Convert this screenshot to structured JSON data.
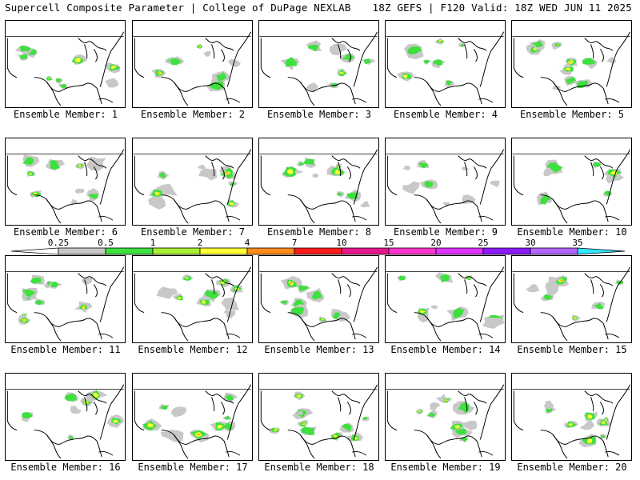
{
  "header": {
    "left_title": "Supercell Composite Parameter | College of DuPage NEXLAB",
    "right_title": "18Z GEFS | F120 Valid: 18Z WED JUN 11 2025"
  },
  "colorbar": {
    "levels": [
      "0.25",
      "0.5",
      "1",
      "2",
      "4",
      "7",
      "10",
      "15",
      "20",
      "25",
      "30",
      "35"
    ],
    "colors": [
      "#c8c8c8",
      "#3ee03e",
      "#a8ee33",
      "#ffff33",
      "#ff8c1a",
      "#ff1a1a",
      "#e8168e",
      "#ff33cc",
      "#e033ff",
      "#8c1aff",
      "#b366ff",
      "#33e6ff"
    ]
  },
  "map_colors": {
    "land": "#ffffff",
    "border": "#000000",
    "field_light": "#c8c8c8",
    "field_mid": "#3ee03e",
    "field_high": "#ffff33",
    "field_peak": "#ff8c1a"
  },
  "members": [
    {
      "label": "Ensemble Member: 1"
    },
    {
      "label": "Ensemble Member: 2"
    },
    {
      "label": "Ensemble Member: 3"
    },
    {
      "label": "Ensemble Member: 4"
    },
    {
      "label": "Ensemble Member: 5"
    },
    {
      "label": "Ensemble Member: 6"
    },
    {
      "label": "Ensemble Member: 7"
    },
    {
      "label": "Ensemble Member: 8"
    },
    {
      "label": "Ensemble Member: 9"
    },
    {
      "label": "Ensemble Member: 10"
    },
    {
      "label": "Ensemble Member: 11"
    },
    {
      "label": "Ensemble Member: 12"
    },
    {
      "label": "Ensemble Member: 13"
    },
    {
      "label": "Ensemble Member: 14"
    },
    {
      "label": "Ensemble Member: 15"
    },
    {
      "label": "Ensemble Member: 16"
    },
    {
      "label": "Ensemble Member: 17"
    },
    {
      "label": "Ensemble Member: 18"
    },
    {
      "label": "Ensemble Member: 19"
    },
    {
      "label": "Ensemble Member: 20"
    }
  ]
}
